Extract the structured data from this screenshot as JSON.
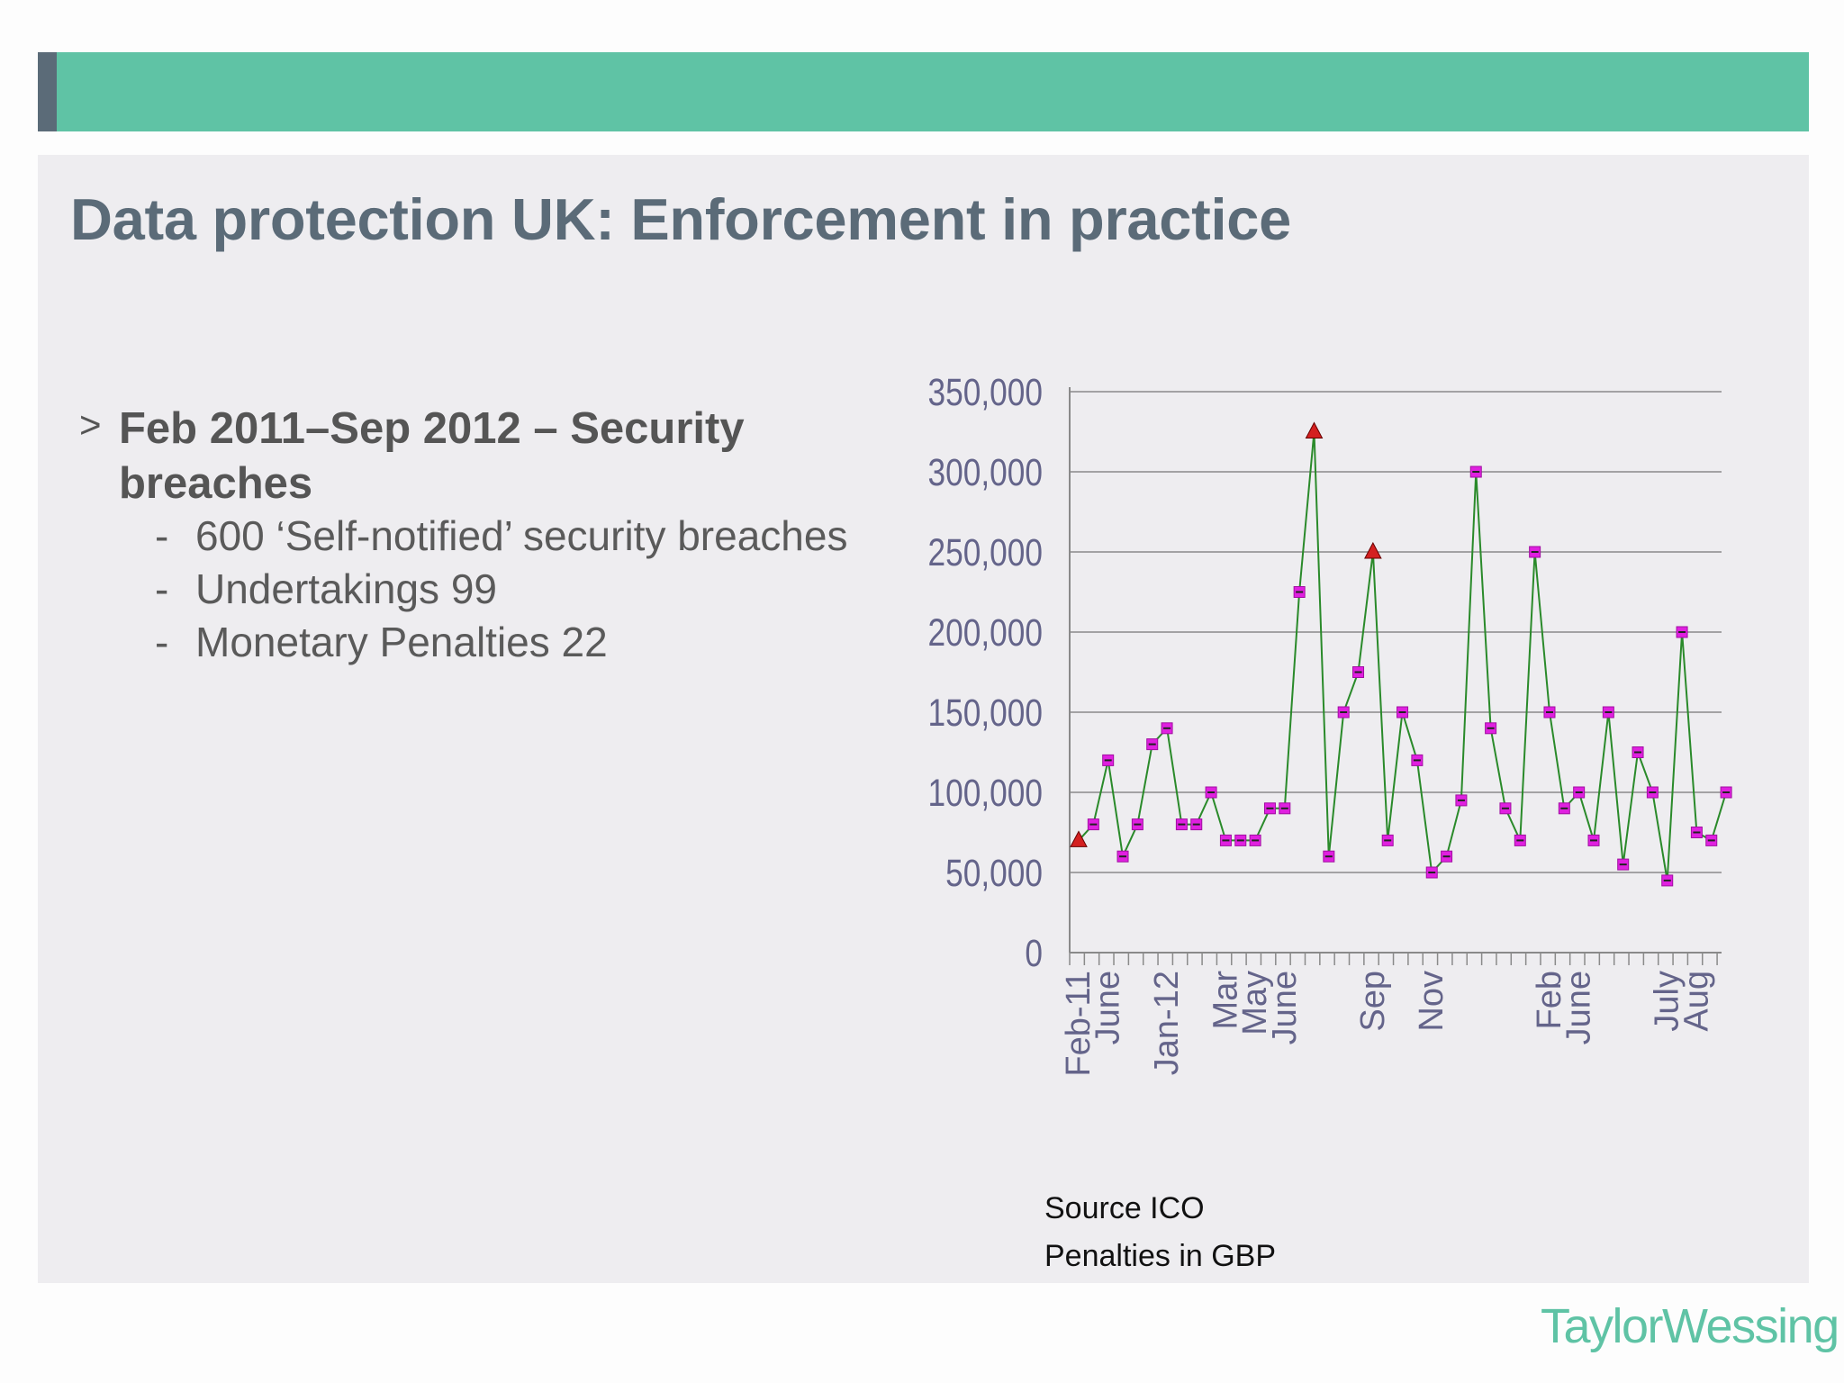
{
  "slide": {
    "title": "Data protection UK: Enforcement in practice",
    "bullet": {
      "marker": ">",
      "heading": "Feb 2011–Sep 2012 – Security breaches",
      "items": [
        "600 ‘Self-notified’ security breaches",
        "Undertakings  99",
        "Monetary Penalties  22"
      ]
    },
    "source_lines": [
      "Source ICO",
      "Penalties in GBP"
    ],
    "logo": "TaylorWessing"
  },
  "colors": {
    "band": "#5fc3a5",
    "band_edge": "#5b6b78",
    "panel": "#eeedf0",
    "title": "#5b6b78",
    "axis_text": "#64648a",
    "line": "#2a8a2a",
    "marker": "#e020e0",
    "marker_highlight": "#d42020",
    "logo": "#5fc3a5"
  },
  "chart_data": {
    "type": "line",
    "title": "",
    "xlabel": "",
    "ylabel": "",
    "ylim": [
      0,
      350000
    ],
    "yticks": [
      "0",
      "50,000",
      "100,000",
      "150,000",
      "200,000",
      "250,000",
      "300,000",
      "350,000"
    ],
    "grid": true,
    "legend": "none",
    "x_labels": [
      {
        "index": 0,
        "label": "Feb-11"
      },
      {
        "index": 2,
        "label": "June"
      },
      {
        "index": 6,
        "label": "Jan-12"
      },
      {
        "index": 10,
        "label": "Mar"
      },
      {
        "index": 12,
        "label": "May"
      },
      {
        "index": 14,
        "label": "June"
      },
      {
        "index": 20,
        "label": "Sep"
      },
      {
        "index": 24,
        "label": "Nov"
      },
      {
        "index": 32,
        "label": "Feb"
      },
      {
        "index": 34,
        "label": "June"
      },
      {
        "index": 40,
        "label": "July"
      },
      {
        "index": 42,
        "label": "Aug"
      }
    ],
    "series": [
      {
        "values": [
          70000,
          80000,
          120000,
          60000,
          80000,
          130000,
          140000,
          80000,
          80000,
          100000,
          70000,
          70000,
          70000,
          90000,
          90000,
          225000,
          325000,
          60000,
          150000,
          175000,
          250000,
          70000,
          150000,
          120000,
          50000,
          60000,
          95000,
          300000,
          140000,
          90000,
          70000,
          250000,
          150000,
          90000,
          100000,
          70000,
          150000,
          55000,
          125000,
          100000,
          45000,
          200000,
          75000,
          70000,
          100000
        ],
        "highlight_indices": [
          0,
          16,
          20
        ]
      }
    ]
  }
}
